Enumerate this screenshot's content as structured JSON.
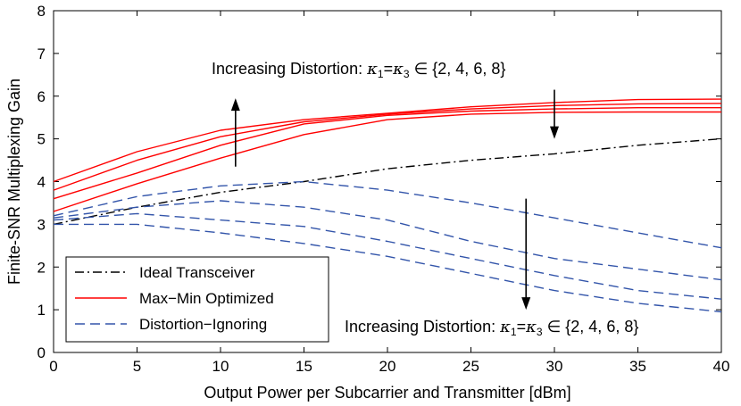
{
  "chart_data": {
    "type": "line",
    "xlabel": "Output Power per Subcarrier and Transmitter [dBm]",
    "ylabel": "Finite-SNR Multiplexing Gain",
    "xlim": [
      0,
      40
    ],
    "ylim": [
      0,
      8
    ],
    "xticks": [
      0,
      5,
      10,
      15,
      20,
      25,
      30,
      35,
      40
    ],
    "yticks": [
      0,
      1,
      2,
      3,
      4,
      5,
      6,
      7,
      8
    ],
    "grid": false,
    "legend_position": "bottom-left",
    "x": [
      0,
      5,
      10,
      15,
      20,
      25,
      30,
      35,
      40
    ],
    "series": [
      {
        "name": "Ideal Transceiver",
        "style": "dashdot",
        "color": "#000000",
        "values": [
          3.0,
          3.4,
          3.75,
          4.0,
          4.3,
          4.5,
          4.65,
          4.85,
          5.0
        ]
      },
      {
        "name": "Max-Min Optimized",
        "style": "solid",
        "color": "#ff0000",
        "values": [
          4.0,
          4.7,
          5.2,
          5.45,
          5.6,
          5.75,
          5.85,
          5.92,
          5.93
        ]
      },
      {
        "name": "",
        "style": "solid",
        "color": "#ff0000",
        "values": [
          3.8,
          4.5,
          5.05,
          5.4,
          5.58,
          5.7,
          5.78,
          5.82,
          5.83
        ]
      },
      {
        "name": "",
        "style": "solid",
        "color": "#ff0000",
        "values": [
          3.6,
          4.2,
          4.85,
          5.35,
          5.55,
          5.65,
          5.7,
          5.73,
          5.73
        ]
      },
      {
        "name": "",
        "style": "solid",
        "color": "#ff0000",
        "values": [
          3.3,
          3.95,
          4.55,
          5.1,
          5.45,
          5.58,
          5.62,
          5.63,
          5.63
        ]
      },
      {
        "name": "Distortion-Ignoring",
        "style": "dashed",
        "color": "#3355aa",
        "values": [
          3.2,
          3.65,
          3.9,
          4.0,
          3.8,
          3.5,
          3.15,
          2.8,
          2.45
        ]
      },
      {
        "name": "",
        "style": "dashed",
        "color": "#3355aa",
        "values": [
          3.15,
          3.4,
          3.55,
          3.4,
          3.1,
          2.6,
          2.2,
          1.95,
          1.7
        ]
      },
      {
        "name": "",
        "style": "dashed",
        "color": "#3355aa",
        "values": [
          3.1,
          3.25,
          3.1,
          2.95,
          2.6,
          2.2,
          1.8,
          1.45,
          1.25
        ]
      },
      {
        "name": "",
        "style": "dashed",
        "color": "#3355aa",
        "values": [
          3.0,
          3.0,
          2.8,
          2.55,
          2.25,
          1.85,
          1.45,
          1.15,
          0.95
        ]
      }
    ],
    "annotations": [
      {
        "prefix": "Increasing Distortion: ",
        "math_k1": "κ",
        "sub1": "1",
        "eq": "=",
        "math_k3": "κ",
        "sub3": "3",
        "set": "∈ {2, 4, 6, 8}"
      },
      {
        "prefix": "Increasing Distortion: ",
        "math_k1": "κ",
        "sub1": "1",
        "eq": "=",
        "math_k3": "κ",
        "sub3": "3",
        "set": "∈ {2, 4, 6, 8}"
      }
    ],
    "legend": [
      {
        "label": "Ideal Transceiver",
        "style": "dashdot",
        "color": "#000000"
      },
      {
        "label": "Max−Min Optimized",
        "style": "solid",
        "color": "#ff0000"
      },
      {
        "label": "Distortion−Ignoring",
        "style": "dashed",
        "color": "#3355aa"
      }
    ]
  }
}
